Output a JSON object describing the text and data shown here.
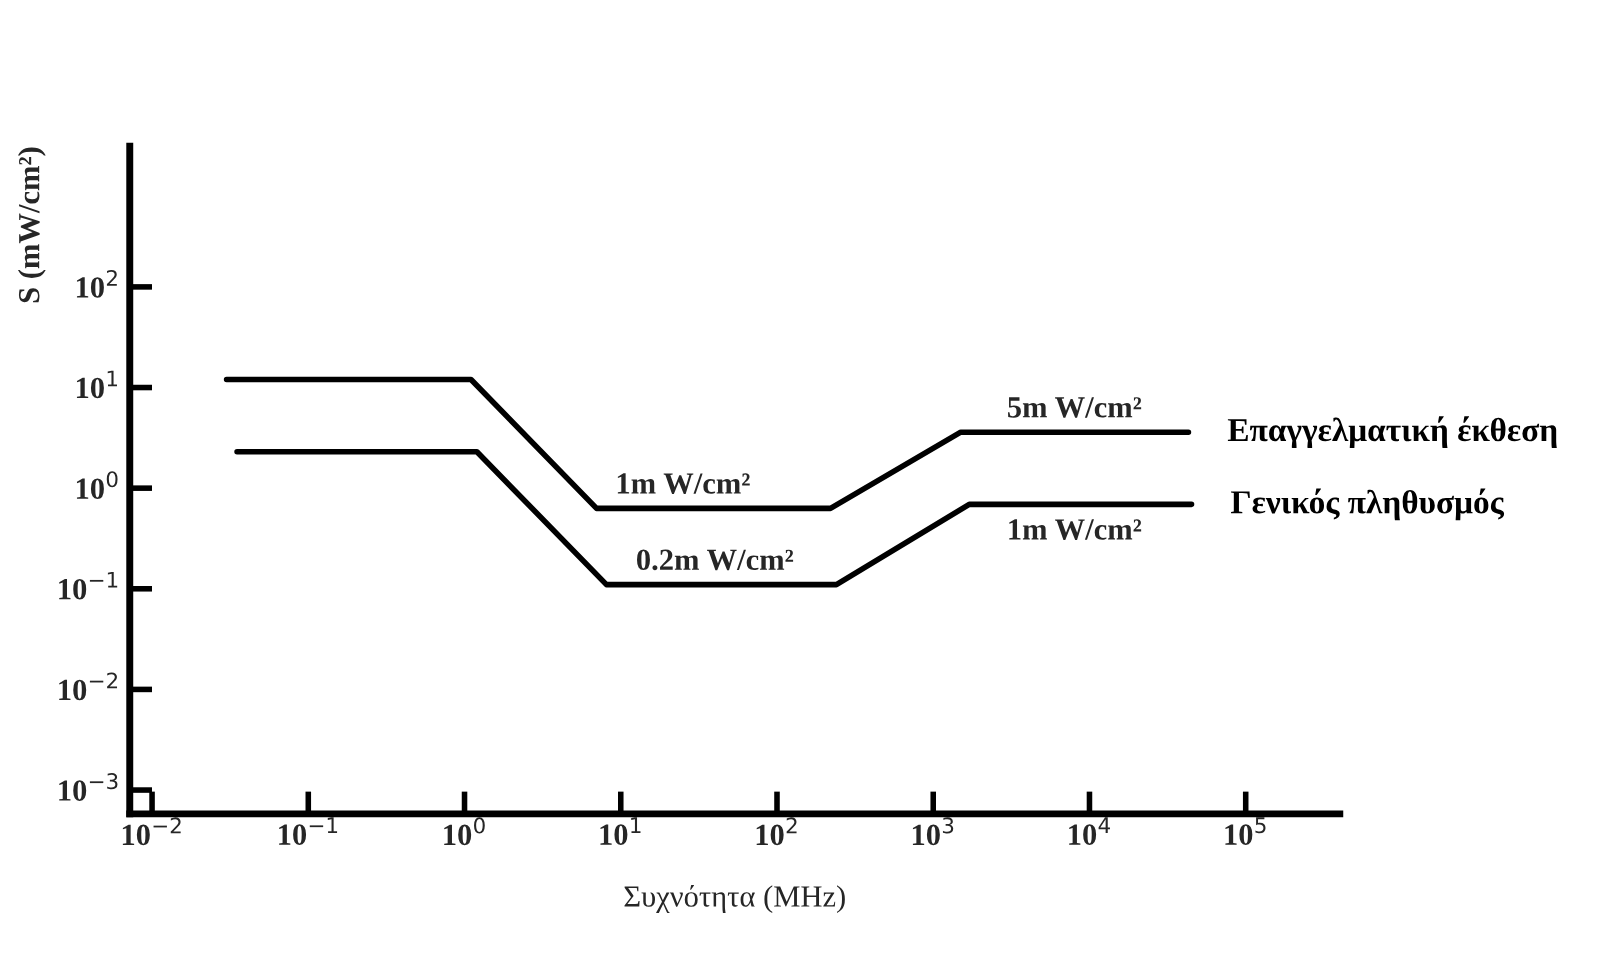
{
  "chart_data": {
    "type": "line",
    "xlabel": "Συχνότητα (MHz)",
    "ylabel": "S (mW/cm²)",
    "log": "xy",
    "series": [
      {
        "name": "Επαγγελματική έκθεση",
        "color": "#000000",
        "x": [
          0.03,
          1.1,
          7,
          220,
          1500,
          43000
        ],
        "values": [
          12,
          12,
          0.63,
          0.63,
          3.6,
          3.6
        ]
      },
      {
        "name": "Γενικός πληθυσμός",
        "color": "#000000",
        "x": [
          0.035,
          1.2,
          8.1,
          240,
          1700,
          45000
        ],
        "values": [
          2.3,
          2.3,
          0.11,
          0.11,
          0.69,
          0.69
        ]
      }
    ],
    "xlim": [
      0.0072,
      400000
    ],
    "ylim": [
      0.00058,
      2500
    ],
    "xticks": [
      {
        "value": 0.01,
        "label": "10$^{−2}$"
      },
      {
        "value": 0.1,
        "label": "10$^{−1}$"
      },
      {
        "value": 1,
        "label": "10$^{0}$"
      },
      {
        "value": 10,
        "label": "10$^{1}$"
      },
      {
        "value": 100,
        "label": "10$^{2}$"
      },
      {
        "value": 1000,
        "label": "10$^{3}$"
      },
      {
        "value": 10000,
        "label": "10$^{4}$"
      },
      {
        "value": 100000,
        "label": "10$^{5}$"
      }
    ],
    "yticks": [
      {
        "value": 0.001,
        "label": "10$^{−3}$"
      },
      {
        "value": 0.01,
        "label": "10$^{−2}$"
      },
      {
        "value": 0.1,
        "label": "10$^{−1}$"
      },
      {
        "value": 1,
        "label": "10$^{0}$"
      },
      {
        "value": 10,
        "label": "10$^{1}$"
      },
      {
        "value": 100,
        "label": "10$^{2}$"
      }
    ],
    "annotations": [
      {
        "text": "1m W/cm²",
        "x": 25,
        "y": 0.63
      },
      {
        "text": "0.2m W/cm²",
        "x": 40,
        "y": 0.11
      },
      {
        "text": "5m W/cm²",
        "x": 8000,
        "y": 3.6
      },
      {
        "text": "1m W/cm²",
        "x": 8000,
        "y": 0.69
      }
    ],
    "grid": false,
    "legend": false,
    "marker": "none",
    "line_style": "solid"
  }
}
